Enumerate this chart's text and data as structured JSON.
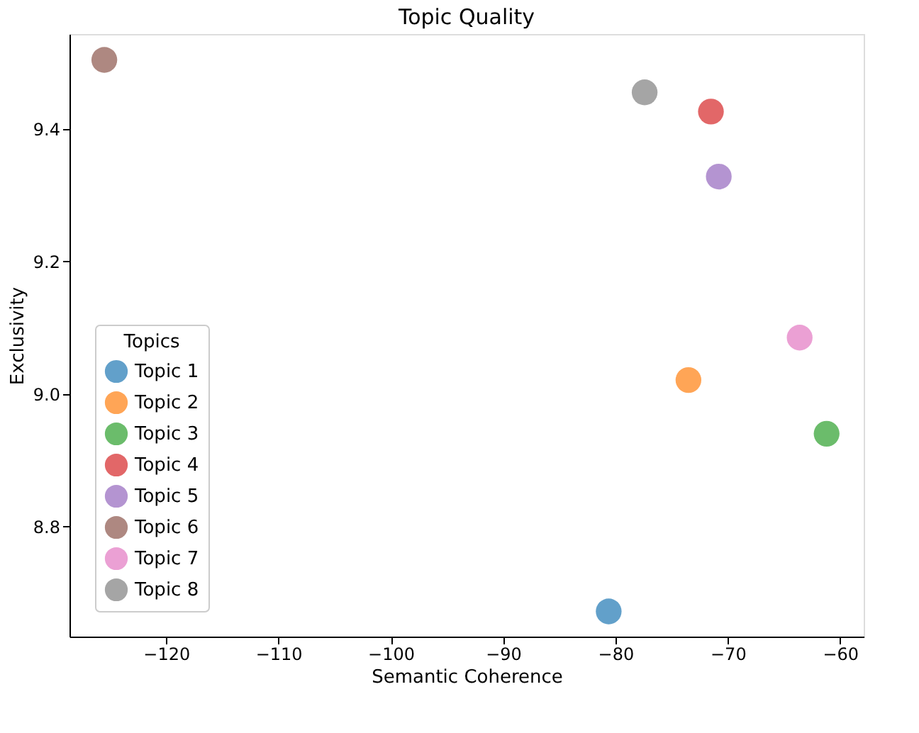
{
  "chart_data": {
    "type": "scatter",
    "title": "Topic Quality",
    "xlabel": "Semantic Coherence",
    "ylabel": "Exclusivity",
    "legend_title": "Topics",
    "series": [
      {
        "name": "Topic 1",
        "color": "#1f77b4",
        "x": [
          -80.6
        ],
        "values": [
          8.672
        ]
      },
      {
        "name": "Topic 2",
        "color": "#ff7f0e",
        "x": [
          -73.5
        ],
        "values": [
          9.021
        ]
      },
      {
        "name": "Topic 3",
        "color": "#2ca02c",
        "x": [
          -61.2
        ],
        "values": [
          8.94
        ]
      },
      {
        "name": "Topic 4",
        "color": "#d62728",
        "x": [
          -71.5
        ],
        "values": [
          9.426
        ]
      },
      {
        "name": "Topic 5",
        "color": "#9467bd",
        "x": [
          -70.8
        ],
        "values": [
          9.328
        ]
      },
      {
        "name": "Topic 6",
        "color": "#8c564b",
        "x": [
          -125.5
        ],
        "values": [
          9.504
        ]
      },
      {
        "name": "Topic 7",
        "color": "#e377c2",
        "x": [
          -63.6
        ],
        "values": [
          9.085
        ]
      },
      {
        "name": "Topic 8",
        "color": "#7f7f7f",
        "x": [
          -77.4
        ],
        "values": [
          9.455
        ]
      }
    ],
    "xlim": [
      -128.6,
      -57.9
    ],
    "ylim": [
      8.634,
      9.543
    ],
    "xticks": [
      -120,
      -110,
      -100,
      -90,
      -80,
      -70,
      -60
    ],
    "yticks": [
      8.8,
      {
        "value": 9,
        "label": "9.0"
      },
      9.2,
      9.4
    ],
    "legend": "bottom left",
    "grid": false,
    "marker": "circle"
  }
}
